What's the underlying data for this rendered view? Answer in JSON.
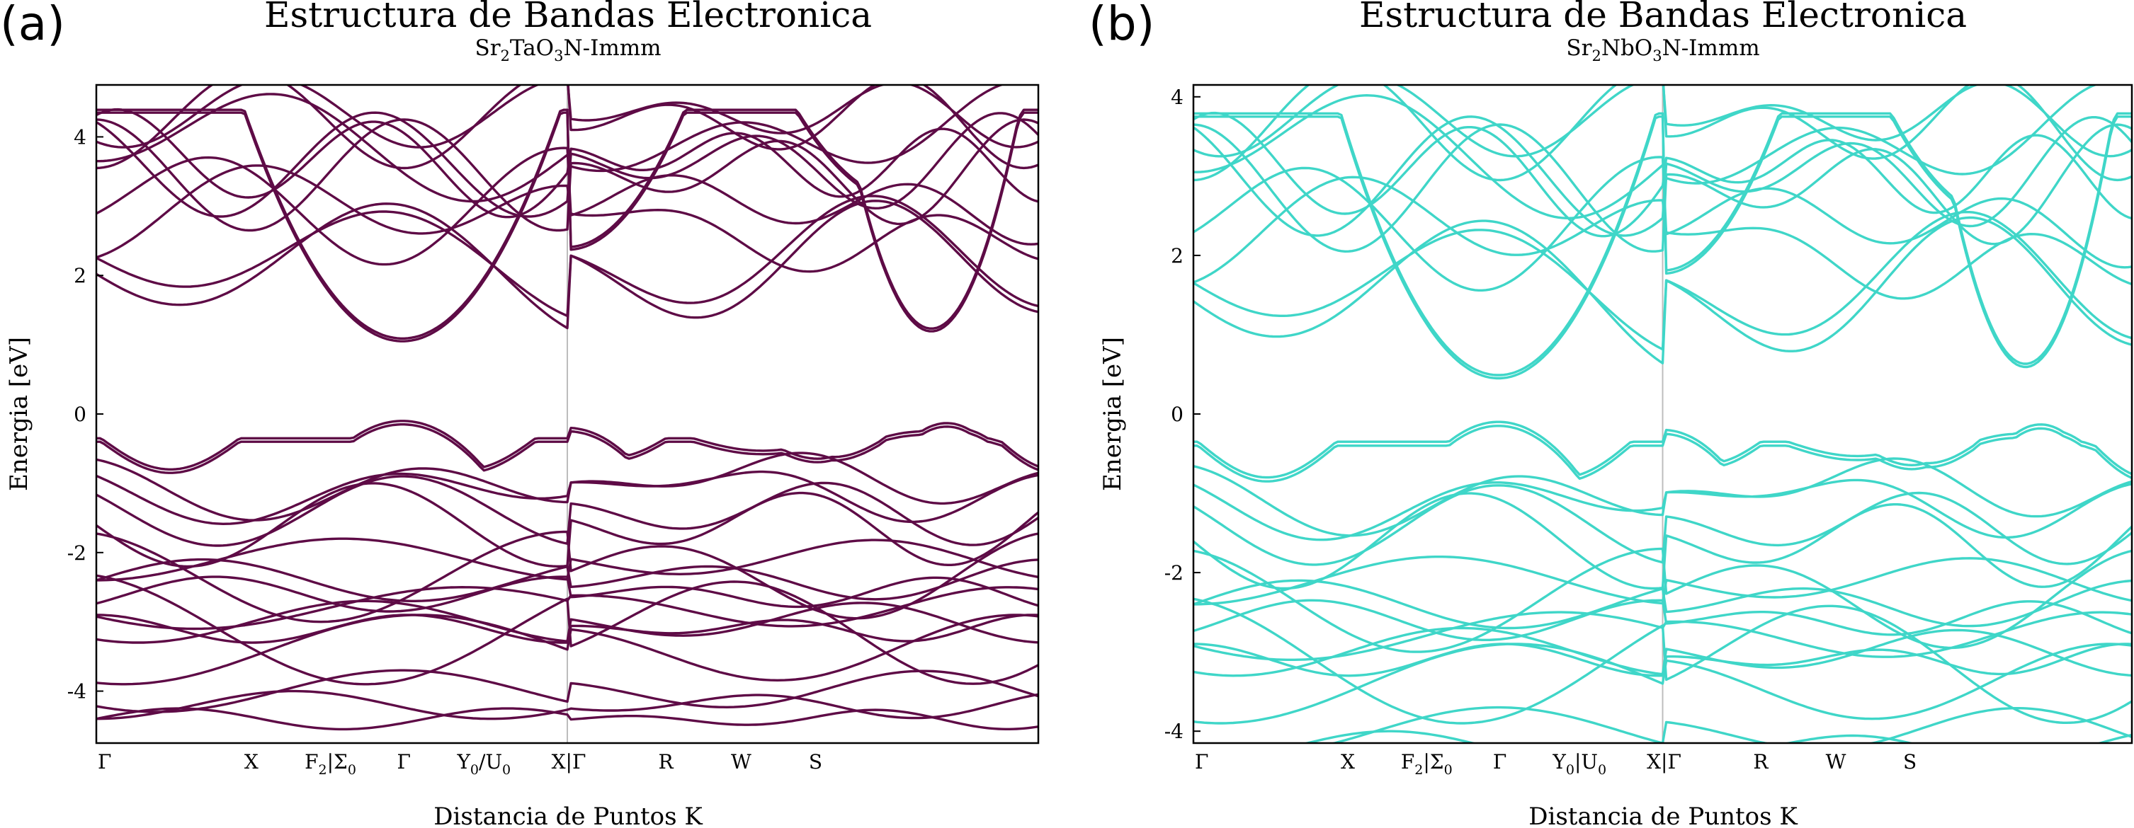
{
  "chart_data": [
    {
      "type": "line",
      "panel_label": "(a)",
      "title": "Estructura de Bandas Electronica",
      "subtitle": {
        "p1": "Sr",
        "s1": "2",
        "p2": "TaO",
        "s2": "3",
        "p3": "N-Immm"
      },
      "xlabel": "Distancia de Puntos K",
      "ylabel": "Energia [eV]",
      "ylim": [
        -4.75,
        4.75
      ],
      "yticks": [
        4,
        2,
        0,
        -2,
        -4
      ],
      "ytick_labels": [
        "4",
        "2",
        "0",
        "-2",
        "-4"
      ],
      "color": "#5e0b46",
      "kpath": [
        {
          "x": 0.0,
          "label": "Γ"
        },
        {
          "x": 0.163,
          "label": "X"
        },
        {
          "x": 0.247,
          "label": "F",
          "sub": "2",
          "label2": "|Σ",
          "sub2": "0"
        },
        {
          "x": 0.325,
          "label": "Γ"
        },
        {
          "x": 0.41,
          "label": "Y",
          "sub": "0",
          "label2": "/U",
          "sub2": "0"
        },
        {
          "x": 0.5,
          "label": "X|Γ"
        },
        {
          "x": 0.603,
          "label": "R"
        },
        {
          "x": 0.683,
          "label": "W"
        },
        {
          "x": 0.762,
          "label": "S"
        }
      ],
      "gap": {
        "vbm": -0.1,
        "cbm": 1.05
      }
    },
    {
      "type": "line",
      "panel_label": "(b)",
      "title": "Estructura de Bandas Electronica",
      "subtitle": {
        "p1": "Sr",
        "s1": "2",
        "p2": "NbO",
        "s2": "3",
        "p3": "N-Immm"
      },
      "xlabel": "Distancia de Puntos K",
      "ylabel": "Energia [eV]",
      "ylim": [
        -4.15,
        4.15
      ],
      "yticks": [
        4,
        2,
        0,
        -2,
        -4
      ],
      "ytick_labels": [
        "4",
        "2",
        "0",
        "-2",
        "-4"
      ],
      "color": "#3fd6c8",
      "kpath": [
        {
          "x": 0.0,
          "label": "Γ"
        },
        {
          "x": 0.163,
          "label": "X"
        },
        {
          "x": 0.247,
          "label": "F",
          "sub": "2",
          "label2": "|Σ",
          "sub2": "0"
        },
        {
          "x": 0.325,
          "label": "Γ"
        },
        {
          "x": 0.41,
          "label": "Y",
          "sub": "0",
          "label2": "|U",
          "sub2": "0"
        },
        {
          "x": 0.5,
          "label": "X|Γ"
        },
        {
          "x": 0.603,
          "label": "R"
        },
        {
          "x": 0.683,
          "label": "W"
        },
        {
          "x": 0.762,
          "label": "S"
        }
      ],
      "gap": {
        "vbm": -0.1,
        "cbm": 0.45
      }
    }
  ]
}
